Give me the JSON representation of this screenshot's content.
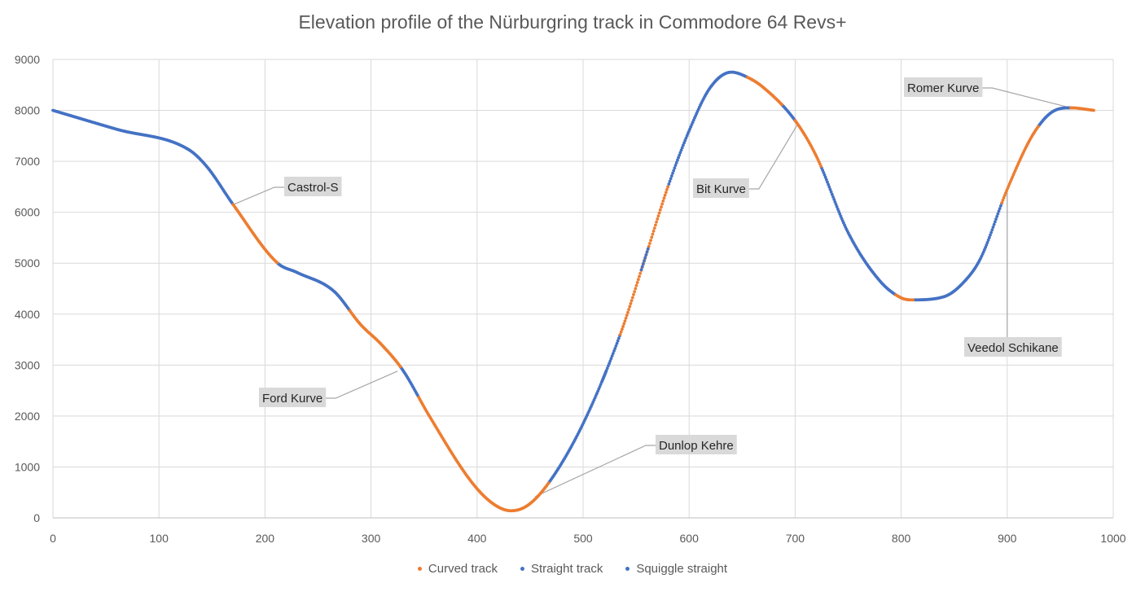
{
  "chart_data": {
    "type": "scatter",
    "title": "Elevation profile of the Nürburgring track in Commodore 64 Revs+",
    "xlabel": "",
    "ylabel": "",
    "xlim": [
      0,
      1000
    ],
    "ylim": [
      0,
      9000
    ],
    "x_ticks": [
      0,
      100,
      200,
      300,
      400,
      500,
      600,
      700,
      800,
      900,
      1000
    ],
    "y_ticks": [
      0,
      1000,
      2000,
      3000,
      4000,
      5000,
      6000,
      7000,
      8000,
      9000
    ],
    "grid": true,
    "legend_position": "bottom",
    "colors": {
      "curved": "#ED7D31",
      "straight": "#4472C4",
      "squiggle": "#4472C4"
    },
    "profile": [
      [
        0,
        8000
      ],
      [
        60,
        7630
      ],
      [
        128,
        7230
      ],
      [
        145,
        6900
      ],
      [
        170,
        6150
      ],
      [
        212,
        5000
      ],
      [
        230,
        4820
      ],
      [
        265,
        4450
      ],
      [
        290,
        3800
      ],
      [
        310,
        3400
      ],
      [
        330,
        2900
      ],
      [
        355,
        2000
      ],
      [
        395,
        700
      ],
      [
        415,
        280
      ],
      [
        432,
        140
      ],
      [
        448,
        250
      ],
      [
        468,
        700
      ],
      [
        500,
        1850
      ],
      [
        535,
        3600
      ],
      [
        560,
        5200
      ],
      [
        580,
        6500
      ],
      [
        600,
        7600
      ],
      [
        620,
        8450
      ],
      [
        640,
        8750
      ],
      [
        655,
        8650
      ],
      [
        670,
        8450
      ],
      [
        700,
        7800
      ],
      [
        720,
        7100
      ],
      [
        750,
        5600
      ],
      [
        780,
        4650
      ],
      [
        800,
        4320
      ],
      [
        810,
        4280
      ],
      [
        840,
        4340
      ],
      [
        860,
        4650
      ],
      [
        875,
        5100
      ],
      [
        900,
        6450
      ],
      [
        925,
        7550
      ],
      [
        945,
        8000
      ],
      [
        960,
        8050
      ],
      [
        982,
        8000
      ]
    ],
    "series": [
      {
        "name": "Curved track",
        "segments": [
          [
            170,
            212
          ],
          [
            280,
            328
          ],
          [
            345,
            468
          ],
          [
            535,
            580
          ],
          [
            655,
            688
          ],
          [
            700,
            725
          ],
          [
            795,
            812
          ],
          [
            895,
            930
          ],
          [
            960,
            982
          ]
        ]
      },
      {
        "name": "Straight track",
        "segments": [
          [
            0,
            170
          ],
          [
            212,
            280
          ],
          [
            328,
            345
          ],
          [
            468,
            535
          ],
          [
            580,
            655
          ],
          [
            688,
            700
          ],
          [
            725,
            795
          ],
          [
            812,
            895
          ],
          [
            930,
            960
          ]
        ]
      },
      {
        "name": "Squiggle straight",
        "segments": [
          [
            555,
            562
          ],
          [
            518,
            522
          ]
        ]
      }
    ],
    "annotations": [
      {
        "label": "Castrol-S",
        "x": 170,
        "y": 6150
      },
      {
        "label": "Ford Kurve",
        "x": 325,
        "y": 2880
      },
      {
        "label": "Dunlop Kehre",
        "x": 455,
        "y": 420
      },
      {
        "label": "Bit Kurve",
        "x": 703,
        "y": 7750
      },
      {
        "label": "Veedol Schikane",
        "x": 900,
        "y": 6450
      },
      {
        "label": "Romer Kurve",
        "x": 958,
        "y": 8060
      }
    ]
  }
}
